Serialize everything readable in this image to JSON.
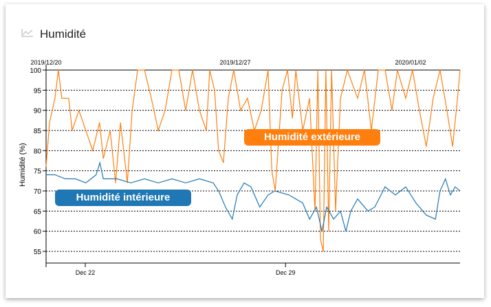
{
  "header": {
    "title": "Humidité",
    "icon": "line-chart-icon"
  },
  "chart_data": {
    "type": "line",
    "title": "Humidité",
    "ylabel": "Humidité (%)",
    "xlabel": "",
    "x_units": "days since 2019-12-20 00:00",
    "xlim": [
      0.63,
      15.1
    ],
    "ylim": [
      52,
      100
    ],
    "yticks": [
      55,
      60,
      65,
      70,
      75,
      80,
      85,
      90,
      95,
      100
    ],
    "grid": "horizontal dotted",
    "xticks": [
      {
        "day": 2,
        "label": "Dec 22"
      },
      {
        "day": 9,
        "label": "Dec 29"
      }
    ],
    "top_labels": [
      {
        "day": 0.63,
        "label": "2019/12/20"
      },
      {
        "day": 7.24,
        "label": "2019/12/27"
      },
      {
        "day": 13.37,
        "label": "2020/01/02"
      }
    ],
    "series": [
      {
        "name": "Humidité extérieure",
        "color": "#ff7f0e",
        "points": [
          [
            0.63,
            76
          ],
          [
            0.75,
            87
          ],
          [
            0.94,
            93
          ],
          [
            1.06,
            100
          ],
          [
            1.18,
            93
          ],
          [
            1.42,
            93
          ],
          [
            1.54,
            85
          ],
          [
            1.78,
            90
          ],
          [
            2.02,
            85
          ],
          [
            2.26,
            80
          ],
          [
            2.5,
            87
          ],
          [
            2.63,
            78
          ],
          [
            2.87,
            85
          ],
          [
            3.06,
            72
          ],
          [
            3.23,
            87
          ],
          [
            3.47,
            72
          ],
          [
            3.64,
            90
          ],
          [
            3.83,
            100
          ],
          [
            4.07,
            100
          ],
          [
            4.31,
            93
          ],
          [
            4.55,
            85
          ],
          [
            4.79,
            90
          ],
          [
            5.03,
            100
          ],
          [
            5.27,
            100
          ],
          [
            5.51,
            90
          ],
          [
            5.75,
            100
          ],
          [
            5.99,
            90
          ],
          [
            6.23,
            85
          ],
          [
            6.35,
            100
          ],
          [
            6.52,
            95
          ],
          [
            6.66,
            80
          ],
          [
            6.83,
            77
          ],
          [
            7.0,
            93
          ],
          [
            7.19,
            100
          ],
          [
            7.43,
            90
          ],
          [
            7.67,
            93
          ],
          [
            7.91,
            85
          ],
          [
            8.15,
            90
          ],
          [
            8.39,
            100
          ],
          [
            8.52,
            75
          ],
          [
            8.64,
            70
          ],
          [
            8.88,
            95
          ],
          [
            9.07,
            100
          ],
          [
            9.24,
            88
          ],
          [
            9.36,
            100
          ],
          [
            9.6,
            85
          ],
          [
            9.84,
            93
          ],
          [
            10.03,
            65
          ],
          [
            10.13,
            100
          ],
          [
            10.22,
            58
          ],
          [
            10.32,
            55
          ],
          [
            10.41,
            100
          ],
          [
            10.51,
            60
          ],
          [
            10.61,
            100
          ],
          [
            10.75,
            65
          ],
          [
            10.92,
            93
          ],
          [
            11.16,
            100
          ],
          [
            11.52,
            93
          ],
          [
            11.76,
            100
          ],
          [
            12.0,
            85
          ],
          [
            12.24,
            100
          ],
          [
            12.48,
            100
          ],
          [
            12.72,
            90
          ],
          [
            12.91,
            100
          ],
          [
            13.2,
            93
          ],
          [
            13.44,
            100
          ],
          [
            13.68,
            90
          ],
          [
            13.92,
            81
          ],
          [
            14.16,
            93
          ],
          [
            14.4,
            100
          ],
          [
            14.64,
            90
          ],
          [
            14.84,
            81
          ],
          [
            15.01,
            93
          ],
          [
            15.1,
            100
          ]
        ]
      },
      {
        "name": "Humidité intérieure",
        "color": "#1f77b4",
        "points": [
          [
            0.63,
            74
          ],
          [
            0.94,
            74
          ],
          [
            1.3,
            73
          ],
          [
            1.66,
            73
          ],
          [
            2.02,
            72
          ],
          [
            2.38,
            74
          ],
          [
            2.51,
            77
          ],
          [
            2.63,
            73
          ],
          [
            3.11,
            73
          ],
          [
            3.59,
            72
          ],
          [
            4.07,
            73
          ],
          [
            4.55,
            72
          ],
          [
            5.03,
            73
          ],
          [
            5.51,
            72
          ],
          [
            5.99,
            73
          ],
          [
            6.47,
            72
          ],
          [
            6.66,
            70
          ],
          [
            6.9,
            66
          ],
          [
            7.14,
            63
          ],
          [
            7.31,
            69
          ],
          [
            7.55,
            72
          ],
          [
            7.79,
            71
          ],
          [
            8.1,
            66
          ],
          [
            8.39,
            69
          ],
          [
            8.63,
            70
          ],
          [
            9.12,
            69
          ],
          [
            9.6,
            67
          ],
          [
            9.84,
            63
          ],
          [
            10.08,
            66
          ],
          [
            10.27,
            60
          ],
          [
            10.44,
            66
          ],
          [
            10.68,
            63
          ],
          [
            10.92,
            65
          ],
          [
            11.11,
            60
          ],
          [
            11.28,
            65
          ],
          [
            11.52,
            68
          ],
          [
            11.88,
            65
          ],
          [
            12.12,
            66
          ],
          [
            12.48,
            71
          ],
          [
            12.84,
            69
          ],
          [
            13.2,
            71
          ],
          [
            13.56,
            67
          ],
          [
            13.92,
            64
          ],
          [
            14.24,
            63
          ],
          [
            14.4,
            70
          ],
          [
            14.59,
            73
          ],
          [
            14.76,
            69
          ],
          [
            14.93,
            71
          ],
          [
            15.1,
            70
          ]
        ]
      }
    ],
    "annotations": [
      "Humidité extérieure",
      "Humidité intérieure"
    ]
  }
}
